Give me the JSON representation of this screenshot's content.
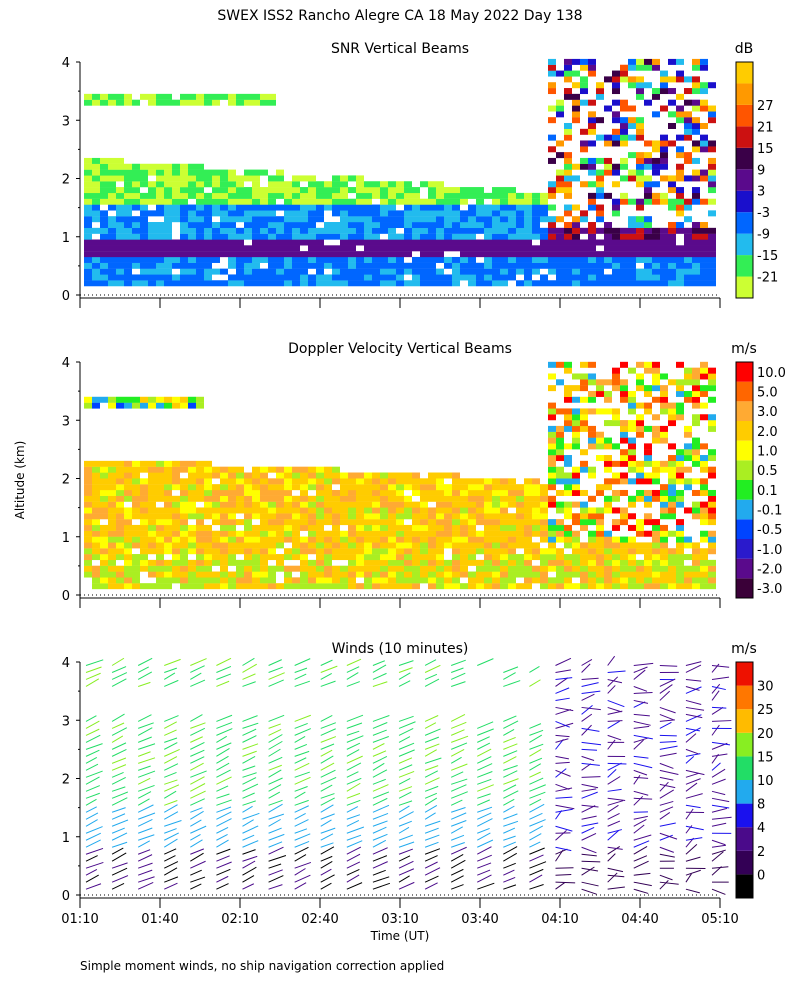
{
  "figure": {
    "title": "SWEX ISS2 Rancho Alegre CA  18 May 2022 Day 138",
    "footnote": "Simple moment winds, no ship navigation correction applied",
    "ylabel": "Altitude (km)",
    "xlabel": "Time (UT)"
  },
  "chart_data": [
    {
      "type": "heatmap",
      "title": "SNR Vertical Beams",
      "units": "dB",
      "x_ticks": [
        "01:10",
        "01:40",
        "02:10",
        "02:40",
        "03:10",
        "03:40",
        "04:10",
        "04:40",
        "05:10"
      ],
      "ylim": [
        0,
        4
      ],
      "y_ticks": [
        "0",
        "1",
        "2",
        "3",
        "4"
      ],
      "colorbar": {
        "labels": [
          "-21",
          "-15",
          "-9",
          "-3",
          "3",
          "9",
          "15",
          "21",
          "27"
        ],
        "colors": [
          "#ccff33",
          "#33ee55",
          "#22bbee",
          "#0066ff",
          "#1a0fcc",
          "#5a0a8c",
          "#3a0048",
          "#cc1111",
          "#ff5500",
          "#ff9900",
          "#ffcc00"
        ]
      },
      "layers": [
        {
          "desc": "strong near-surface echo band",
          "color_level": 5,
          "start_alt": 0.55,
          "end_alt": 0.85
        },
        {
          "desc": "boundary layer",
          "color_level": 3,
          "start_alt": 0.15,
          "end_alt": 1.6
        },
        {
          "desc": "upper boundary layer",
          "color_level": 1,
          "start_alt": 1.6,
          "end_alt": 2.3
        },
        {
          "desc": "cloud layer",
          "color_level": 0,
          "start_alt": 3.2,
          "end_alt": 3.35
        }
      ]
    },
    {
      "type": "heatmap",
      "title": "Doppler Velocity Vertical Beams",
      "units": "m/s",
      "x_ticks": [
        "01:10",
        "01:40",
        "02:10",
        "02:40",
        "03:10",
        "03:40",
        "04:10",
        "04:40",
        "05:10"
      ],
      "ylim": [
        0,
        4
      ],
      "y_ticks": [
        "0",
        "1",
        "2",
        "3",
        "4"
      ],
      "colorbar": {
        "labels": [
          "10.0",
          "5.0",
          "3.0",
          "2.0",
          "1.0",
          "0.5",
          "0.1",
          "-0.1",
          "-0.5",
          "-1.0",
          "-2.0",
          "-3.0"
        ],
        "colors": [
          "#3a0038",
          "#5a0a8c",
          "#2a1acc",
          "#0044ff",
          "#22aaee",
          "#22ee22",
          "#aaee22",
          "#ffff00",
          "#ffcc00",
          "#ffaa33",
          "#ff6600",
          "#ff0000"
        ]
      }
    },
    {
      "type": "barbs",
      "title": "Winds (10 minutes)",
      "units": "m/s",
      "x_ticks": [
        "01:10",
        "01:40",
        "02:10",
        "02:40",
        "03:10",
        "03:40",
        "04:10",
        "04:40",
        "05:10"
      ],
      "ylim": [
        0,
        4
      ],
      "y_ticks": [
        "0",
        "1",
        "2",
        "3",
        "4"
      ],
      "colorbar": {
        "labels": [
          "0",
          "2",
          "4",
          "8",
          "10",
          "15",
          "20",
          "25",
          "30"
        ],
        "colors": [
          "#000000",
          "#330055",
          "#4a0a8a",
          "#1a11ee",
          "#22aaee",
          "#22dd66",
          "#88ee22",
          "#ffbb00",
          "#ff7700",
          "#ee1100"
        ]
      },
      "profile_times": [
        "01:10",
        "01:20",
        "01:30",
        "01:40",
        "01:50",
        "02:00",
        "02:10",
        "02:20",
        "02:30",
        "02:40",
        "02:50",
        "03:00",
        "03:10",
        "03:20",
        "03:30",
        "03:40",
        "03:50",
        "04:00",
        "04:10",
        "04:20",
        "04:30",
        "04:40",
        "04:50",
        "05:00",
        "05:10"
      ]
    }
  ]
}
